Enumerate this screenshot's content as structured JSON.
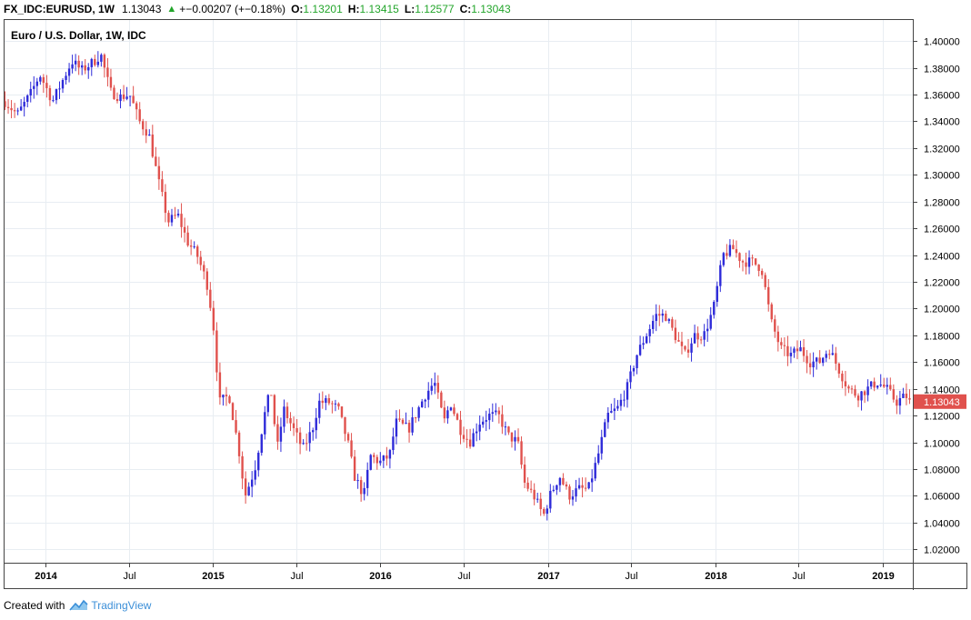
{
  "header": {
    "symbol": "FX_IDC:EURUSD, 1W",
    "last": "1.13043",
    "up_arrow": "▲",
    "change": "+−0.00207 (+−0.18%)",
    "o_label": "O:",
    "o_value": "1.13201",
    "h_label": "H:",
    "h_value": "1.13415",
    "l_label": "L:",
    "l_value": "1.12577",
    "c_label": "C:",
    "c_value": "1.13043"
  },
  "footer": {
    "created_with": "Created with",
    "brand": "TradingView",
    "logo_icon": "tradingview-cloud-icon"
  },
  "colors": {
    "up": "#2e2bd9",
    "down": "#e0514d",
    "grid": "#e8edf2",
    "axis": "#000000",
    "price_label_bg": "#e0514d",
    "header_green": "#22a52a"
  },
  "chart_data": {
    "type": "candlestick",
    "title": "Euro / U.S. Dollar, 1W, IDC",
    "interval": "1W",
    "y_ticks": [
      "1.02000",
      "1.04000",
      "1.06000",
      "1.08000",
      "1.10000",
      "1.12000",
      "1.14000",
      "1.16000",
      "1.18000",
      "1.20000",
      "1.22000",
      "1.24000",
      "1.26000",
      "1.28000",
      "1.30000",
      "1.32000",
      "1.34000",
      "1.36000",
      "1.38000",
      "1.40000"
    ],
    "ylim": [
      1.01,
      1.415
    ],
    "x_ticks": [
      "2014",
      "Jul",
      "2015",
      "Jul",
      "2016",
      "Jul",
      "2017",
      "Jul",
      "2018",
      "Jul",
      "2019"
    ],
    "x_start": "2013-10-01",
    "x_end": "2019-03-08",
    "last_price": "1.13043",
    "grid": true,
    "series_weekly_approx": [
      [
        "2013-10-07",
        1.355
      ],
      [
        "2013-11-04",
        1.345
      ],
      [
        "2013-12-02",
        1.36
      ],
      [
        "2013-12-23",
        1.375
      ],
      [
        "2014-01-20",
        1.355
      ],
      [
        "2014-02-10",
        1.37
      ],
      [
        "2014-03-03",
        1.385
      ],
      [
        "2014-03-24",
        1.378
      ],
      [
        "2014-04-21",
        1.385
      ],
      [
        "2014-05-05",
        1.39
      ],
      [
        "2014-05-26",
        1.362
      ],
      [
        "2014-06-16",
        1.358
      ],
      [
        "2014-07-07",
        1.36
      ],
      [
        "2014-07-28",
        1.34
      ],
      [
        "2014-08-18",
        1.33
      ],
      [
        "2014-09-08",
        1.295
      ],
      [
        "2014-09-29",
        1.265
      ],
      [
        "2014-10-20",
        1.27
      ],
      [
        "2014-11-10",
        1.25
      ],
      [
        "2014-12-01",
        1.24
      ],
      [
        "2014-12-22",
        1.22
      ],
      [
        "2015-01-05",
        1.19
      ],
      [
        "2015-01-19",
        1.13
      ],
      [
        "2015-02-09",
        1.135
      ],
      [
        "2015-03-02",
        1.095
      ],
      [
        "2015-03-16",
        1.06
      ],
      [
        "2015-04-06",
        1.08
      ],
      [
        "2015-04-27",
        1.12
      ],
      [
        "2015-05-11",
        1.14
      ],
      [
        "2015-05-25",
        1.095
      ],
      [
        "2015-06-08",
        1.125
      ],
      [
        "2015-06-29",
        1.11
      ],
      [
        "2015-07-20",
        1.095
      ],
      [
        "2015-08-10",
        1.11
      ],
      [
        "2015-08-24",
        1.13
      ],
      [
        "2015-09-14",
        1.13
      ],
      [
        "2015-10-05",
        1.125
      ],
      [
        "2015-10-26",
        1.1
      ],
      [
        "2015-11-09",
        1.075
      ],
      [
        "2015-11-30",
        1.06
      ],
      [
        "2015-12-14",
        1.09
      ],
      [
        "2016-01-04",
        1.085
      ],
      [
        "2016-01-25",
        1.09
      ],
      [
        "2016-02-08",
        1.115
      ],
      [
        "2016-03-07",
        1.11
      ],
      [
        "2016-03-21",
        1.12
      ],
      [
        "2016-04-11",
        1.135
      ],
      [
        "2016-05-02",
        1.145
      ],
      [
        "2016-05-23",
        1.115
      ],
      [
        "2016-06-06",
        1.13
      ],
      [
        "2016-06-27",
        1.11
      ],
      [
        "2016-07-18",
        1.1
      ],
      [
        "2016-08-08",
        1.115
      ],
      [
        "2016-08-29",
        1.12
      ],
      [
        "2016-09-19",
        1.12
      ],
      [
        "2016-10-10",
        1.105
      ],
      [
        "2016-10-31",
        1.1
      ],
      [
        "2016-11-14",
        1.07
      ],
      [
        "2016-12-05",
        1.06
      ],
      [
        "2016-12-26",
        1.045
      ],
      [
        "2017-01-09",
        1.06
      ],
      [
        "2017-01-30",
        1.075
      ],
      [
        "2017-02-20",
        1.06
      ],
      [
        "2017-03-13",
        1.065
      ],
      [
        "2017-04-03",
        1.065
      ],
      [
        "2017-04-24",
        1.09
      ],
      [
        "2017-05-15",
        1.12
      ],
      [
        "2017-06-05",
        1.125
      ],
      [
        "2017-06-26",
        1.14
      ],
      [
        "2017-07-17",
        1.165
      ],
      [
        "2017-08-07",
        1.18
      ],
      [
        "2017-08-28",
        1.195
      ],
      [
        "2017-09-18",
        1.195
      ],
      [
        "2017-10-09",
        1.18
      ],
      [
        "2017-10-30",
        1.165
      ],
      [
        "2017-11-20",
        1.18
      ],
      [
        "2017-12-11",
        1.18
      ],
      [
        "2018-01-01",
        1.2
      ],
      [
        "2018-01-22",
        1.24
      ],
      [
        "2018-02-12",
        1.245
      ],
      [
        "2018-03-05",
        1.235
      ],
      [
        "2018-03-26",
        1.235
      ],
      [
        "2018-04-16",
        1.23
      ],
      [
        "2018-05-07",
        1.19
      ],
      [
        "2018-05-28",
        1.17
      ],
      [
        "2018-06-18",
        1.165
      ],
      [
        "2018-07-09",
        1.17
      ],
      [
        "2018-07-30",
        1.16
      ],
      [
        "2018-08-20",
        1.16
      ],
      [
        "2018-09-10",
        1.17
      ],
      [
        "2018-10-01",
        1.155
      ],
      [
        "2018-10-22",
        1.14
      ],
      [
        "2018-11-12",
        1.135
      ],
      [
        "2018-12-03",
        1.14
      ],
      [
        "2018-12-24",
        1.145
      ],
      [
        "2019-01-14",
        1.14
      ],
      [
        "2019-02-04",
        1.13
      ],
      [
        "2019-02-25",
        1.135
      ],
      [
        "2019-03-04",
        1.13
      ]
    ]
  }
}
